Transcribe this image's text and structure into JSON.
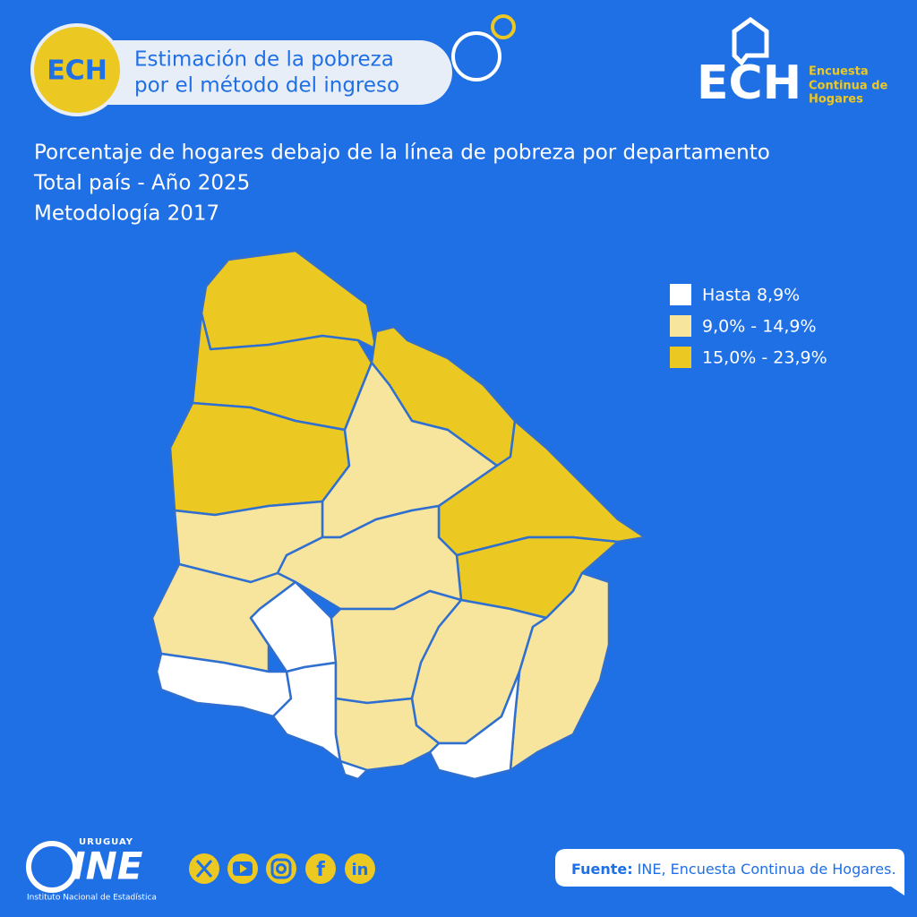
{
  "header": {
    "badge": "ECH",
    "title_line1": "Estimación de la pobreza",
    "title_line2": "por el método del ingreso"
  },
  "logo": {
    "mark": "ECH",
    "line1": "Encuesta",
    "line2": "Continua de",
    "line3": "Hogares"
  },
  "titles": [
    "Porcentaje de hogares debajo de la línea de pobreza por departamento",
    "Total país - Año 2025",
    "Metodología 2017"
  ],
  "legend": {
    "items": [
      {
        "label": "Hasta 8,9%",
        "color": "#ffffff"
      },
      {
        "label": "9,0% - 14,9%",
        "color": "#f7e59e"
      },
      {
        "label": "15,0% - 23,9%",
        "color": "#ecc823"
      }
    ]
  },
  "footer": {
    "ine_country": "URUGUAY",
    "ine_mark": "INE",
    "ine_name": "Instituto Nacional de Estadística",
    "social": [
      "f",
      "in"
    ],
    "source_label": "Fuente:",
    "source_text": "INE, Encuesta Continua de Hogares."
  }
}
